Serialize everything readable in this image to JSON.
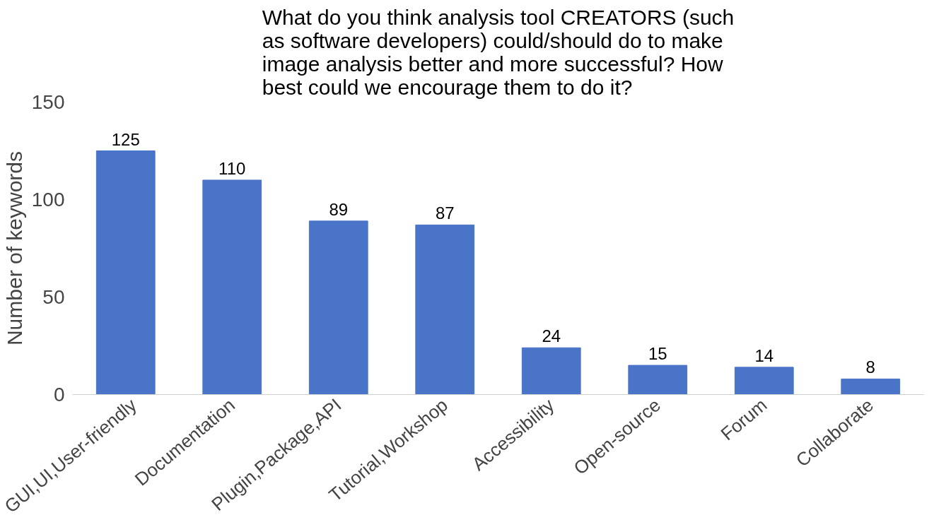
{
  "chart_data": {
    "type": "bar",
    "title": "What do you think analysis tool CREATORS (such as software developers) could/should do to make image analysis better and more successful? How best could we encourage them to do it?",
    "ylabel": "Number of keywords",
    "categories": [
      "GUI,UI,User-friendly",
      "Documentation",
      "Plugin,Package,API",
      "Tutorial,Workshop",
      "Accessibility",
      "Open-source",
      "Forum",
      "Collaborate"
    ],
    "values": [
      125,
      110,
      89,
      87,
      24,
      15,
      14,
      8
    ],
    "color": "#4a74c8",
    "ylim": [
      0,
      150
    ],
    "yticks": [
      0,
      50,
      100,
      150
    ],
    "data_labels": true,
    "grid": false
  }
}
